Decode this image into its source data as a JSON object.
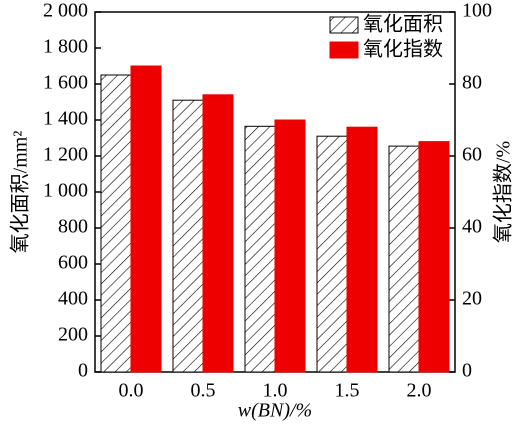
{
  "chart_data": {
    "type": "bar",
    "x_label": "w(BN)/%",
    "y_label": "氧化面积/mm²",
    "y2_label": "氧化指数/%",
    "categories": [
      "0.0",
      "0.5",
      "1.0",
      "1.5",
      "2.0"
    ],
    "series": [
      {
        "name": "氧化面积",
        "color": "#ffffff",
        "hatch": true,
        "values": [
          1650,
          1510,
          1365,
          1310,
          1255
        ]
      },
      {
        "name": "氧化指数",
        "color": "#ee0000",
        "axis": "y2",
        "values": [
          85,
          77,
          70,
          68,
          64
        ]
      }
    ],
    "ylim": [
      0,
      2000
    ],
    "yticks": [
      0,
      200,
      400,
      600,
      800,
      {
        "value": 1000,
        "label": "1 000"
      },
      {
        "value": 1200,
        "label": "1 200"
      },
      {
        "value": 1400,
        "label": "1 400"
      },
      {
        "value": 1600,
        "label": "1 600"
      },
      {
        "value": 1800,
        "label": "1 800"
      },
      {
        "value": 2000,
        "label": "2 000"
      }
    ],
    "y2lim": [
      0,
      100
    ],
    "y2ticks": [
      0,
      20,
      40,
      60,
      80,
      100
    ],
    "legend": "upper right"
  }
}
